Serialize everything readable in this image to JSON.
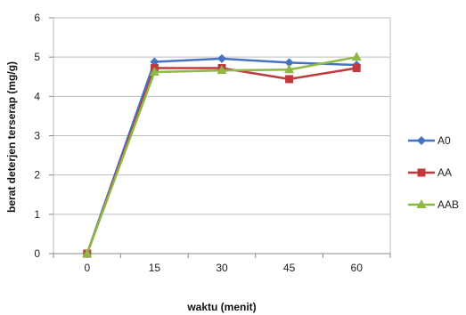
{
  "chart_data": {
    "type": "line",
    "title": "",
    "xlabel": "waktu (menit)",
    "ylabel": "berat deterjen terserap (mg/g)",
    "x": [
      0,
      15,
      30,
      45,
      60
    ],
    "ylim": [
      0,
      6
    ],
    "yticks": [
      0,
      1,
      2,
      3,
      4,
      5,
      6
    ],
    "grid": {
      "horizontal": true,
      "vertical": false
    },
    "legend_position": "right",
    "series": [
      {
        "name": "A0",
        "color": "#4572C4",
        "marker": "diamond",
        "values": [
          0,
          4.88,
          4.96,
          4.86,
          4.8
        ]
      },
      {
        "name": "AA",
        "color": "#C0393B",
        "marker": "square",
        "values": [
          0,
          4.72,
          4.72,
          4.44,
          4.72
        ]
      },
      {
        "name": "AAB",
        "color": "#8DB844",
        "marker": "triangle",
        "values": [
          0,
          4.62,
          4.66,
          4.68,
          5.0
        ]
      }
    ]
  }
}
